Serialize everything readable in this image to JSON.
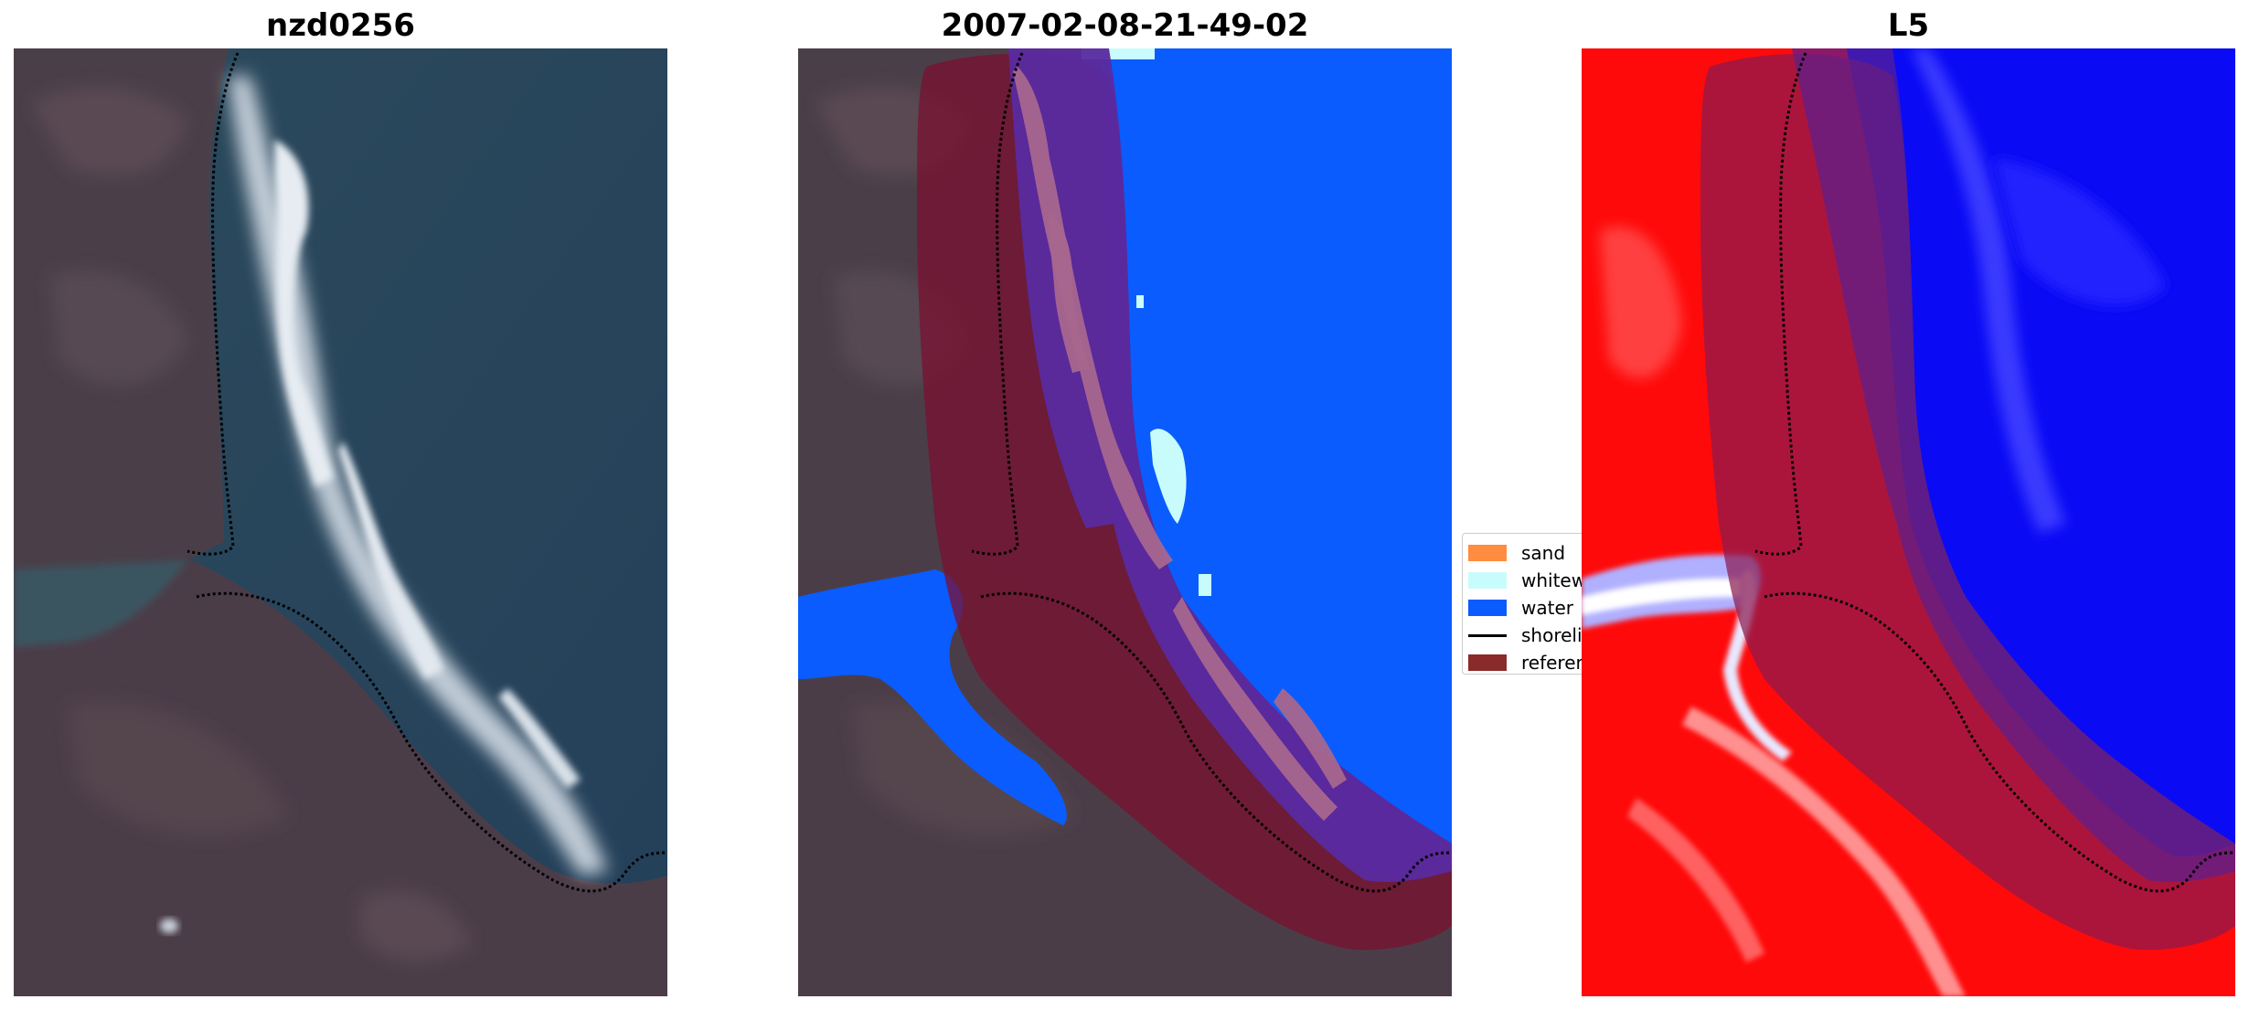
{
  "panels": [
    {
      "title": "nzd0256"
    },
    {
      "title": "2007-02-08-21-49-02"
    },
    {
      "title": "L5"
    }
  ],
  "legend": {
    "items": [
      {
        "label": "sand",
        "color": "#ff8c3f",
        "kind": "patch"
      },
      {
        "label": "whitewater",
        "color": "#c8fcfc",
        "kind": "patch"
      },
      {
        "label": "water",
        "color": "#0a5cff",
        "kind": "patch"
      },
      {
        "label": "shoreline",
        "color": "#000000",
        "kind": "line"
      },
      {
        "label": "reference",
        "color": "#8b2a2a",
        "kind": "patch"
      }
    ]
  },
  "colors": {
    "water_class": "#0a5cff",
    "whitewater_class": "#c8fcfc",
    "reference_buffer": "#7a1030",
    "index_positive": "#ff0000",
    "index_negative": "#0000ff",
    "shoreline": "#000000"
  }
}
